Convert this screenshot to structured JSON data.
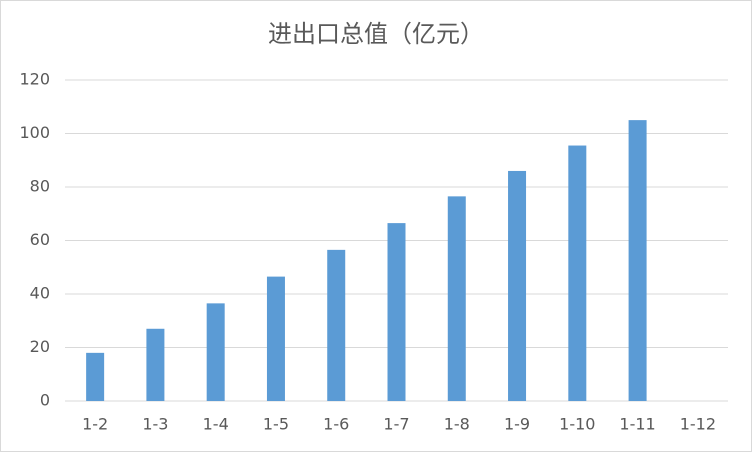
{
  "chart_data": {
    "type": "bar",
    "title": "进出口总值（亿元）",
    "categories": [
      "1-2",
      "1-3",
      "1-4",
      "1-5",
      "1-6",
      "1-7",
      "1-8",
      "1-9",
      "1-10",
      "1-11",
      "1-12"
    ],
    "values": [
      18,
      27,
      36.5,
      46.5,
      56.5,
      66.5,
      76.5,
      86,
      95.5,
      105,
      null
    ],
    "color": "#5b9bd5",
    "ylim": [
      0,
      120
    ],
    "yticks": [
      0,
      20,
      40,
      60,
      80,
      100,
      120
    ],
    "grid": true
  }
}
